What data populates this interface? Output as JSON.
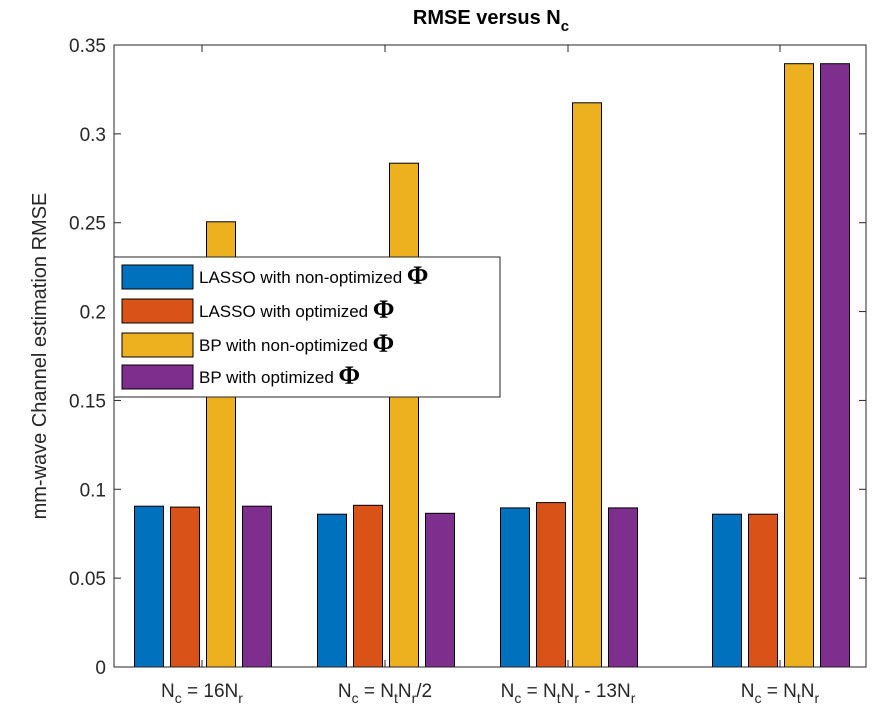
{
  "chart_data": {
    "type": "bar",
    "title": {
      "main": "RMSE versus N",
      "sub": "c"
    },
    "ylabel": "mm-wave Channel estimation RMSE",
    "xlabel": "",
    "ylim": [
      0,
      0.35
    ],
    "yticks": [
      "0",
      "0.05",
      "0.1",
      "0.15",
      "0.2",
      "0.25",
      "0.3",
      "0.35"
    ],
    "categories": [
      {
        "label": "N_c = 16N_r",
        "parts": [
          [
            "N",
            ""
          ],
          [
            "c",
            "sub"
          ],
          [
            " = 16N",
            ""
          ],
          [
            "r",
            "sub"
          ]
        ]
      },
      {
        "label": "N_c = N_tN_r/2",
        "parts": [
          [
            "N",
            ""
          ],
          [
            "c",
            "sub"
          ],
          [
            " = N",
            ""
          ],
          [
            "t",
            "sub"
          ],
          [
            "N",
            ""
          ],
          [
            "r",
            "sub"
          ],
          [
            "/2",
            ""
          ]
        ]
      },
      {
        "label": "N_c = N_tN_r - 13N_r",
        "parts": [
          [
            "N",
            ""
          ],
          [
            "c",
            "sub"
          ],
          [
            " = N",
            ""
          ],
          [
            "t",
            "sub"
          ],
          [
            "N",
            ""
          ],
          [
            "r",
            "sub"
          ],
          [
            " - 13N",
            ""
          ],
          [
            "r",
            "sub"
          ]
        ]
      },
      {
        "label": "N_c = N_tN_r",
        "parts": [
          [
            "N",
            ""
          ],
          [
            "c",
            "sub"
          ],
          [
            " = N",
            ""
          ],
          [
            "t",
            "sub"
          ],
          [
            "N",
            ""
          ],
          [
            "r",
            "sub"
          ]
        ]
      }
    ],
    "series": [
      {
        "name": "LASSO with non-optimized Φ",
        "color": "#0072BD",
        "values": [
          0.0905,
          0.086,
          0.0895,
          0.086
        ]
      },
      {
        "name": "LASSO with optimized Φ",
        "color": "#D95319",
        "values": [
          0.09,
          0.091,
          0.0925,
          0.086
        ]
      },
      {
        "name": "BP with non-optimized Φ",
        "color": "#EDB120",
        "values": [
          0.2505,
          0.2835,
          0.3175,
          0.3395
        ]
      },
      {
        "name": "BP with optimized Φ",
        "color": "#7E2F8E",
        "values": [
          0.0905,
          0.0865,
          0.0895,
          0.3395
        ]
      }
    ],
    "legend": {
      "position": "center-left",
      "items": [
        {
          "text": "LASSO with non-optimized ",
          "symbol": "Φ"
        },
        {
          "text": "LASSO with optimized ",
          "symbol": "Φ"
        },
        {
          "text": "BP with non-optimized ",
          "symbol": "Φ"
        },
        {
          "text": "BP with optimized ",
          "symbol": "Φ"
        }
      ]
    },
    "grid": false
  }
}
